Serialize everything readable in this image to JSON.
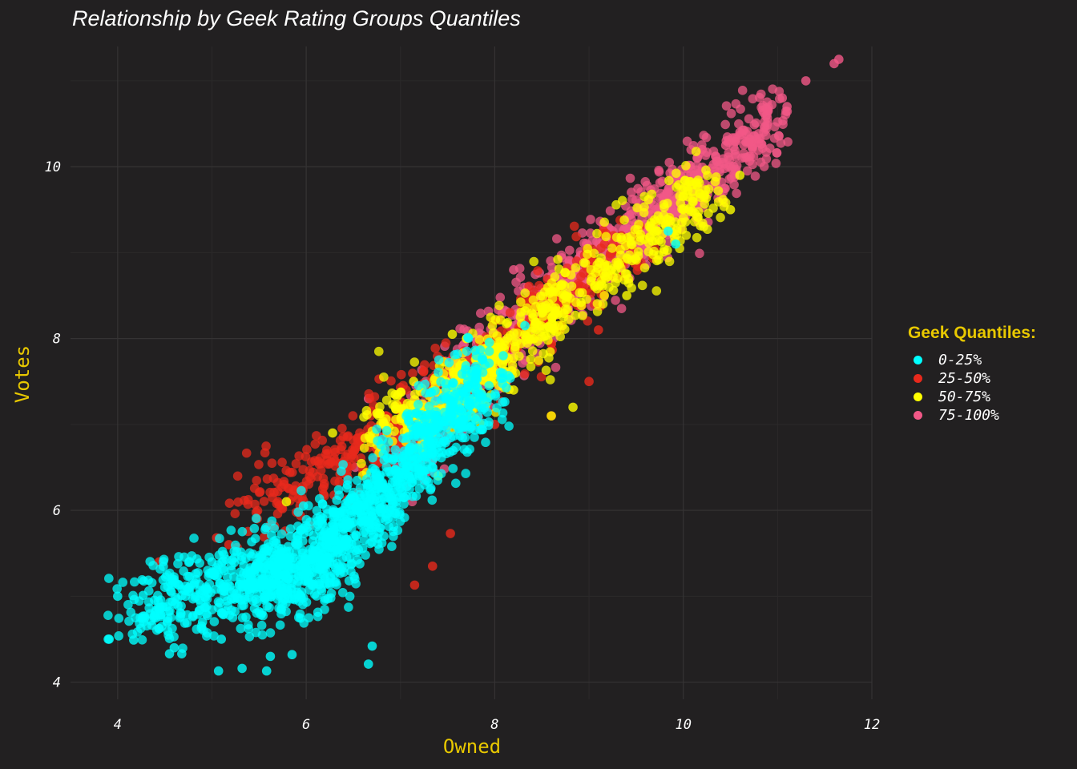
{
  "chart_data": {
    "type": "scatter",
    "title": "Relationship by Geek Rating Groups Quantiles",
    "xlabel": "Owned",
    "ylabel": "Votes",
    "xlim": [
      3.5,
      12
    ],
    "ylim": [
      3.8,
      11.4
    ],
    "x_ticks": [
      "4",
      "6",
      "8",
      "10",
      "12"
    ],
    "y_ticks": [
      "4",
      "6",
      "8",
      "10"
    ],
    "grid": true,
    "legend": {
      "title": "Geek Quantiles:",
      "position": "right"
    },
    "series": [
      {
        "name": "0-25%",
        "color": "#00ffff",
        "center": [
          [
            4.2,
            4.8
          ],
          [
            5.5,
            5.2
          ],
          [
            6.0,
            5.3
          ],
          [
            6.6,
            5.9
          ],
          [
            7.2,
            6.7
          ],
          [
            7.9,
            7.5
          ]
        ],
        "spread": 0.25,
        "points": [
          [
            3.91,
            4.5
          ],
          [
            3.9,
            4.5
          ],
          [
            4.0,
            5.0
          ],
          [
            4.27,
            5.01
          ],
          [
            4.17,
            4.49
          ],
          [
            4.55,
            4.33
          ],
          [
            4.6,
            4.4
          ],
          [
            4.68,
            4.33
          ],
          [
            4.72,
            5.0
          ],
          [
            5.07,
            4.13
          ],
          [
            5.32,
            4.16
          ],
          [
            5.58,
            4.13
          ],
          [
            5.62,
            4.3
          ],
          [
            5.85,
            4.32
          ],
          [
            6.66,
            4.21
          ],
          [
            6.7,
            4.42
          ],
          [
            5.0,
            5.4
          ],
          [
            5.97,
            6.05
          ],
          [
            9.84,
            9.25
          ],
          [
            9.92,
            9.1
          ],
          [
            8.32,
            8.15
          ],
          [
            8.09,
            7.8
          ],
          [
            5.1,
            4.5
          ],
          [
            4.9,
            4.7
          ]
        ]
      },
      {
        "name": "25-50%",
        "color": "#e8291c",
        "center": [
          [
            5.3,
            5.9
          ],
          [
            6.2,
            6.5
          ],
          [
            7.0,
            7.0
          ],
          [
            7.8,
            7.7
          ],
          [
            8.6,
            8.4
          ],
          [
            9.5,
            9.2
          ]
        ],
        "spread": 0.22,
        "points": [
          [
            4.44,
            5.4
          ],
          [
            5.05,
            5.68
          ],
          [
            5.18,
            5.6
          ],
          [
            5.6,
            5.8
          ],
          [
            5.7,
            6.1
          ],
          [
            6.35,
            6.33
          ],
          [
            6.48,
            6.1
          ],
          [
            6.84,
            6.7
          ],
          [
            7.15,
            5.13
          ],
          [
            7.34,
            5.35
          ],
          [
            7.53,
            5.73
          ],
          [
            7.51,
            6.9
          ],
          [
            7.75,
            6.95
          ],
          [
            8.0,
            7.0
          ],
          [
            8.6,
            7.1
          ],
          [
            9.1,
            8.1
          ],
          [
            9.85,
            9.4
          ],
          [
            9.0,
            7.5
          ]
        ]
      },
      {
        "name": "50-75%",
        "color": "#ffff00",
        "center": [
          [
            6.7,
            6.9
          ],
          [
            7.5,
            7.3
          ],
          [
            8.1,
            7.8
          ],
          [
            8.8,
            8.5
          ],
          [
            9.6,
            9.2
          ],
          [
            10.3,
            9.7
          ]
        ],
        "spread": 0.22,
        "points": [
          [
            5.79,
            6.1
          ],
          [
            6.28,
            6.9
          ],
          [
            6.95,
            7.18
          ],
          [
            7.14,
            7.5
          ],
          [
            7.55,
            8.05
          ],
          [
            7.7,
            8.0
          ],
          [
            8.2,
            7.4
          ],
          [
            8.6,
            7.1
          ],
          [
            8.83,
            7.2
          ],
          [
            9.4,
            8.5
          ],
          [
            10.5,
            9.5
          ],
          [
            10.6,
            9.9
          ],
          [
            10.0,
            9.5
          ],
          [
            7.4,
            6.4
          ],
          [
            8.05,
            7.6
          ]
        ]
      },
      {
        "name": "75-100%",
        "color": "#f25887",
        "center": [
          [
            7.0,
            6.6
          ],
          [
            7.6,
            7.4
          ],
          [
            8.2,
            8.0
          ],
          [
            8.8,
            8.7
          ],
          [
            9.5,
            9.3
          ],
          [
            10.3,
            9.9
          ],
          [
            11.0,
            10.6
          ]
        ],
        "spread": 0.22,
        "points": [
          [
            11.65,
            11.25
          ],
          [
            11.6,
            11.2
          ],
          [
            11.3,
            11.0
          ],
          [
            11.05,
            10.8
          ],
          [
            11.1,
            10.7
          ],
          [
            10.9,
            10.65
          ],
          [
            10.6,
            10.4
          ],
          [
            10.45,
            10.25
          ],
          [
            10.2,
            10.2
          ],
          [
            6.66,
            7.3
          ],
          [
            6.52,
            6.5
          ],
          [
            6.78,
            6.8
          ],
          [
            8.79,
            8.3
          ],
          [
            8.35,
            8.6
          ],
          [
            8.2,
            8.8
          ]
        ]
      }
    ]
  }
}
